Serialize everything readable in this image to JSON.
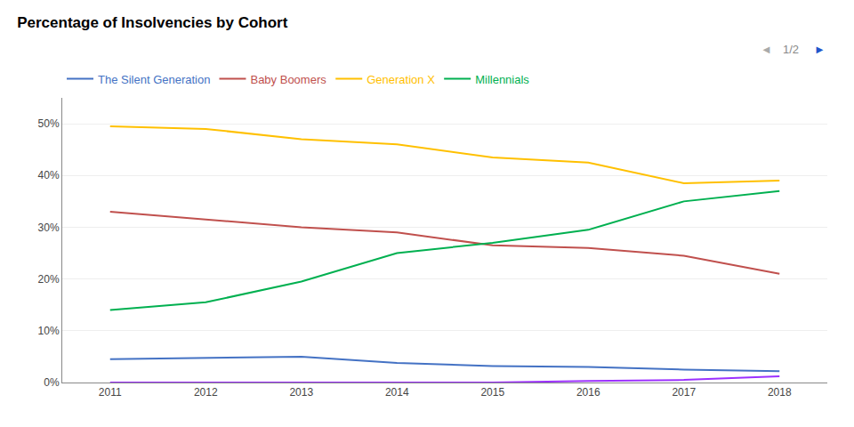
{
  "chart_data": {
    "type": "line",
    "title": "Percentage of Insolvencies by Cohort",
    "x": [
      2011,
      2012,
      2013,
      2014,
      2015,
      2016,
      2017,
      2018
    ],
    "series": [
      {
        "name": "The Silent Generation",
        "color": "#4472C4",
        "values": [
          0.045,
          0.047,
          0.05,
          0.038,
          0.032,
          0.03,
          0.025,
          0.022
        ]
      },
      {
        "name": "Baby Boomers",
        "color": "#C0504D",
        "values": [
          0.33,
          0.315,
          0.3,
          0.29,
          0.265,
          0.26,
          0.245,
          0.21
        ]
      },
      {
        "name": "Generation X",
        "color": "#FFC000",
        "values": [
          0.495,
          0.49,
          0.47,
          0.46,
          0.435,
          0.425,
          0.385,
          0.39
        ]
      },
      {
        "name": "Millennials",
        "color": "#00B050",
        "values": [
          0.14,
          0.155,
          0.195,
          0.25,
          0.27,
          0.295,
          0.35,
          0.37
        ]
      },
      {
        "color": "#9B30FF",
        "values": [
          0.0,
          0.0,
          0.0,
          0.0,
          0.0,
          0.003,
          0.005,
          0.012
        ]
      }
    ],
    "xlim": [
      2010.5,
      2018.5
    ],
    "xticks": [
      2011,
      2012,
      2013,
      2014,
      2015,
      2016,
      2017,
      2018
    ],
    "ylim": [
      0,
      0.55
    ],
    "yticks": [
      {
        "value": 0.0,
        "label": "0%"
      },
      {
        "value": 0.1,
        "label": "10%"
      },
      {
        "value": 0.2,
        "label": "20%"
      },
      {
        "value": 0.3,
        "label": "30%"
      },
      {
        "value": 0.4,
        "label": "40%"
      },
      {
        "value": 0.5,
        "label": "50%"
      }
    ],
    "grid": true,
    "legend": "upper left",
    "annotations": [
      {
        "text": "◄",
        "color": "#AAAAAA"
      },
      {
        "text": "1/2",
        "color": "#888888"
      },
      {
        "text": "►",
        "color": "#2255CC"
      }
    ]
  }
}
